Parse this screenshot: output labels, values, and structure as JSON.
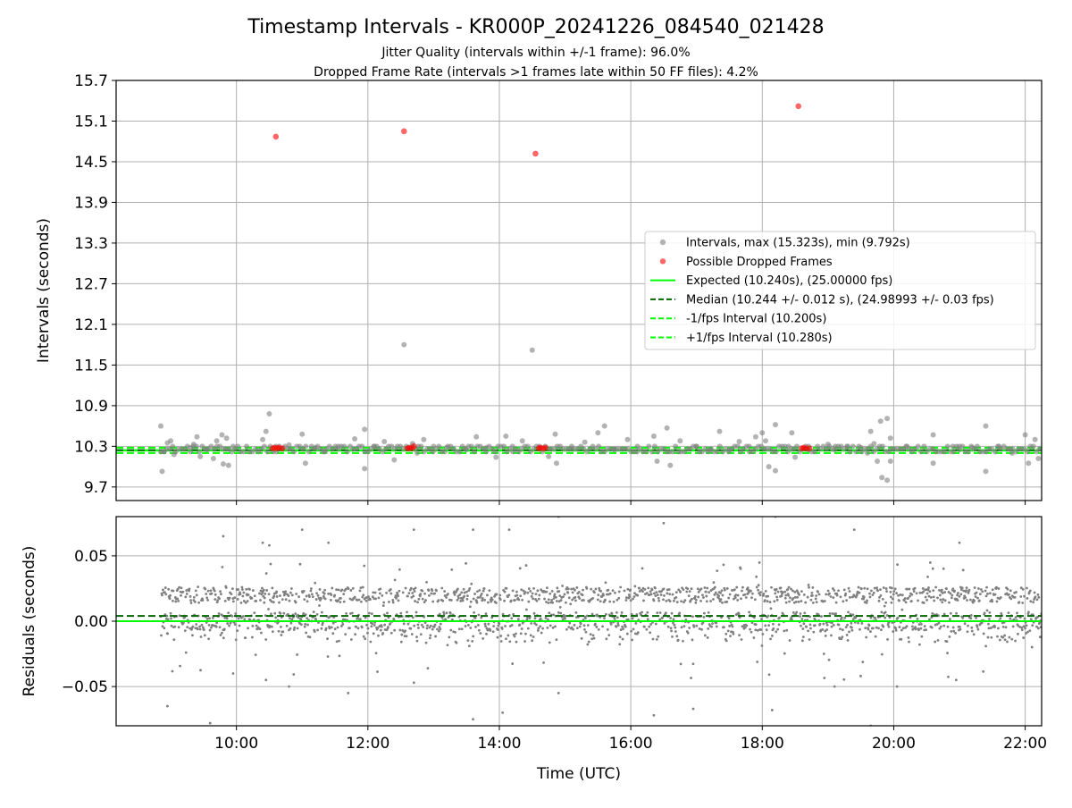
{
  "chart_data": [
    {
      "type": "scatter",
      "title": "Timestamp Intervals - KR000P_20241226_084540_021428",
      "subtitle_lines": [
        "Jitter Quality (intervals within +/-1 frame): 96.0%",
        "Dropped Frame Rate (intervals >1 frames late within 50 FF files): 4.2%"
      ],
      "xlabel": "",
      "ylabel": "Intervals (seconds)",
      "x_unit": "hours UTC",
      "xlim": [
        8.17,
        22.25
      ],
      "ylim": [
        9.5,
        15.7
      ],
      "yticks": [
        9.7,
        10.3,
        10.9,
        11.5,
        12.1,
        12.7,
        13.3,
        13.9,
        14.5,
        15.1,
        15.7
      ],
      "ytick_labels": [
        "9.7",
        "10.3",
        "10.9",
        "11.5",
        "12.1",
        "12.7",
        "13.3",
        "13.9",
        "14.5",
        "15.1",
        "15.7"
      ],
      "xticks": [
        10,
        12,
        14,
        16,
        18,
        20,
        22
      ],
      "grid": true,
      "legend_position": "center-right",
      "series": [
        {
          "name": "Intervals, max (15.323s), min (9.792s)",
          "kind": "scatter",
          "color": "#808080",
          "points": [
            [
              8.85,
              10.6
            ],
            [
              8.9,
              10.22
            ],
            [
              8.95,
              10.35
            ],
            [
              9.0,
              10.38
            ],
            [
              9.05,
              10.18
            ],
            [
              8.87,
              9.93
            ],
            [
              9.3,
              10.28
            ],
            [
              9.35,
              10.33
            ],
            [
              9.4,
              10.44
            ],
            [
              9.45,
              10.15
            ],
            [
              9.55,
              10.25
            ],
            [
              9.65,
              10.12
            ],
            [
              9.7,
              10.38
            ],
            [
              9.78,
              10.47
            ],
            [
              9.8,
              10.04
            ],
            [
              9.85,
              10.42
            ],
            [
              9.88,
              10.02
            ],
            [
              9.95,
              10.3
            ],
            [
              10.4,
              10.4
            ],
            [
              10.45,
              10.52
            ],
            [
              10.5,
              10.78
            ],
            [
              10.6,
              10.3
            ],
            [
              10.8,
              10.32
            ],
            [
              11.0,
              10.48
            ],
            [
              11.05,
              10.05
            ],
            [
              11.2,
              10.28
            ],
            [
              11.35,
              10.22
            ],
            [
              11.55,
              10.3
            ],
            [
              11.8,
              10.41
            ],
            [
              11.95,
              10.55
            ],
            [
              11.95,
              9.97
            ],
            [
              12.1,
              10.3
            ],
            [
              12.25,
              10.37
            ],
            [
              12.4,
              10.1
            ],
            [
              12.55,
              11.8
            ],
            [
              12.62,
              10.28
            ],
            [
              12.68,
              10.34
            ],
            [
              12.75,
              10.2
            ],
            [
              12.85,
              10.4
            ],
            [
              13.0,
              10.3
            ],
            [
              13.2,
              10.28
            ],
            [
              13.5,
              10.25
            ],
            [
              13.65,
              10.44
            ],
            [
              13.8,
              10.28
            ],
            [
              13.95,
              10.14
            ],
            [
              14.1,
              10.45
            ],
            [
              14.2,
              10.3
            ],
            [
              14.35,
              10.38
            ],
            [
              14.5,
              11.72
            ],
            [
              14.6,
              10.28
            ],
            [
              14.75,
              10.15
            ],
            [
              14.85,
              10.48
            ],
            [
              14.87,
              10.05
            ],
            [
              15.1,
              10.3
            ],
            [
              15.3,
              10.36
            ],
            [
              15.5,
              10.5
            ],
            [
              15.6,
              10.6
            ],
            [
              15.75,
              10.25
            ],
            [
              15.95,
              10.4
            ],
            [
              16.1,
              10.3
            ],
            [
              16.35,
              10.45
            ],
            [
              16.4,
              10.08
            ],
            [
              16.55,
              10.57
            ],
            [
              16.6,
              10.02
            ],
            [
              16.75,
              10.38
            ],
            [
              17.0,
              10.3
            ],
            [
              17.2,
              10.25
            ],
            [
              17.35,
              10.52
            ],
            [
              17.5,
              10.25
            ],
            [
              17.65,
              10.37
            ],
            [
              17.8,
              10.3
            ],
            [
              17.9,
              10.44
            ],
            [
              18.0,
              10.5
            ],
            [
              18.05,
              10.38
            ],
            [
              18.1,
              10.0
            ],
            [
              18.2,
              10.62
            ],
            [
              18.2,
              9.94
            ],
            [
              18.4,
              10.3
            ],
            [
              18.45,
              10.5
            ],
            [
              18.5,
              10.14
            ],
            [
              18.7,
              10.25
            ],
            [
              19.0,
              10.33
            ],
            [
              19.1,
              10.25
            ],
            [
              19.3,
              10.3
            ],
            [
              19.5,
              10.28
            ],
            [
              19.6,
              10.2
            ],
            [
              19.65,
              10.52
            ],
            [
              19.7,
              10.34
            ],
            [
              19.75,
              10.08
            ],
            [
              19.8,
              10.67
            ],
            [
              19.82,
              9.84
            ],
            [
              19.9,
              10.71
            ],
            [
              19.9,
              9.8
            ],
            [
              19.95,
              10.42
            ],
            [
              19.95,
              10.08
            ],
            [
              20.2,
              10.3
            ],
            [
              20.6,
              10.47
            ],
            [
              20.6,
              10.05
            ],
            [
              20.9,
              10.3
            ],
            [
              21.0,
              10.25
            ],
            [
              21.2,
              10.28
            ],
            [
              21.4,
              10.6
            ],
            [
              21.4,
              9.93
            ],
            [
              21.6,
              10.3
            ],
            [
              21.8,
              10.2
            ],
            [
              22.0,
              10.47
            ],
            [
              22.05,
              10.05
            ],
            [
              22.15,
              10.4
            ],
            [
              22.2,
              10.12
            ]
          ],
          "band_range": [
            8.85,
            22.25
          ],
          "band_values": [
            10.22,
            10.26,
            10.3
          ]
        },
        {
          "name": "Possible Dropped Frames",
          "kind": "scatter",
          "color": "#ff0000",
          "points": [
            [
              10.6,
              14.87
            ],
            [
              12.55,
              14.95
            ],
            [
              14.55,
              14.62
            ],
            [
              18.55,
              15.32
            ],
            [
              10.55,
              10.27
            ],
            [
              10.58,
              10.28
            ],
            [
              10.62,
              10.27
            ],
            [
              10.65,
              10.28
            ],
            [
              10.7,
              10.27
            ],
            [
              12.6,
              10.27
            ],
            [
              12.63,
              10.28
            ],
            [
              12.67,
              10.27
            ],
            [
              12.7,
              10.3
            ],
            [
              14.6,
              10.27
            ],
            [
              14.63,
              10.28
            ],
            [
              14.67,
              10.27
            ],
            [
              14.7,
              10.28
            ],
            [
              18.6,
              10.27
            ],
            [
              18.63,
              10.28
            ],
            [
              18.67,
              10.27
            ],
            [
              18.72,
              10.27
            ]
          ]
        },
        {
          "name": "Expected (10.240s), (25.00000 fps)",
          "kind": "hline",
          "color": "#00ff00",
          "y": 10.24,
          "style": "solid"
        },
        {
          "name": "Median (10.244 +/- 0.012 s), (24.98993 +/- 0.03 fps)",
          "kind": "hline",
          "color": "#006400",
          "y": 10.244,
          "style": "dashed"
        },
        {
          "name": "-1/fps Interval (10.200s)",
          "kind": "hline",
          "color": "#00ff00",
          "y": 10.2,
          "style": "dashed"
        },
        {
          "name": "+1/fps Interval (10.280s)",
          "kind": "hline",
          "color": "#00ff00",
          "y": 10.28,
          "style": "dashed"
        }
      ]
    },
    {
      "type": "scatter",
      "title": "",
      "xlabel": "Time (UTC)",
      "ylabel": "Residuals (seconds)",
      "x_unit": "hours UTC",
      "xlim": [
        8.17,
        22.25
      ],
      "ylim": [
        -0.08,
        0.08
      ],
      "yticks": [
        -0.05,
        0.0,
        0.05
      ],
      "ytick_labels": [
        "−0.05",
        "0.00",
        "0.05"
      ],
      "xticks": [
        10,
        12,
        14,
        16,
        18,
        20,
        22
      ],
      "xtick_labels": [
        "10:00",
        "12:00",
        "14:00",
        "16:00",
        "18:00",
        "20:00",
        "22:00"
      ],
      "grid": true,
      "series": [
        {
          "name": "",
          "kind": "scatter",
          "color": "#808080",
          "x_range": [
            8.85,
            22.25
          ],
          "bands": [
            0.02,
            0.0,
            -0.01
          ],
          "outliers": [
            [
              9.8,
              0.065
            ],
            [
              10.4,
              0.06
            ],
            [
              10.5,
              0.058
            ],
            [
              11.0,
              0.07
            ],
            [
              11.4,
              0.06
            ],
            [
              12.7,
              0.07
            ],
            [
              13.6,
              0.07
            ],
            [
              14.15,
              0.07
            ],
            [
              14.9,
              0.08
            ],
            [
              16.5,
              0.075
            ],
            [
              18.2,
              0.08
            ],
            [
              19.4,
              0.07
            ],
            [
              21.0,
              0.06
            ],
            [
              8.95,
              -0.065
            ],
            [
              9.6,
              -0.078
            ],
            [
              9.95,
              -0.04
            ],
            [
              10.45,
              -0.045
            ],
            [
              10.8,
              -0.05
            ],
            [
              11.7,
              -0.055
            ],
            [
              12.7,
              -0.047
            ],
            [
              13.6,
              -0.075
            ],
            [
              14.05,
              -0.07
            ],
            [
              14.9,
              -0.055
            ],
            [
              16.35,
              -0.072
            ],
            [
              16.95,
              -0.067
            ],
            [
              18.15,
              -0.068
            ],
            [
              19.1,
              -0.05
            ],
            [
              19.65,
              -0.08
            ],
            [
              20.05,
              -0.05
            ],
            [
              20.95,
              -0.045
            ]
          ]
        },
        {
          "name": "Median",
          "kind": "hline",
          "color": "#006400",
          "y": 0.004,
          "style": "dashed"
        },
        {
          "name": "Expected",
          "kind": "hline",
          "color": "#00ff00",
          "y": 0.0,
          "style": "solid"
        }
      ]
    }
  ]
}
